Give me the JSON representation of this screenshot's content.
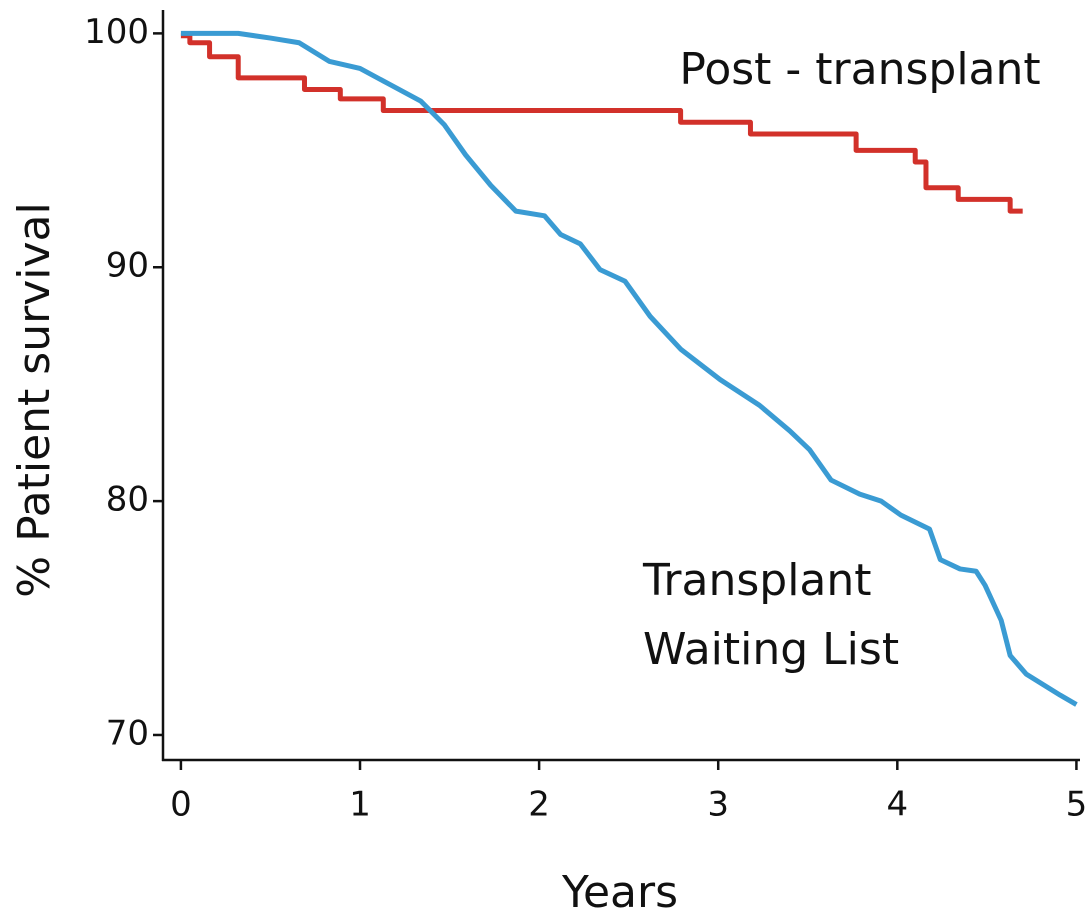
{
  "chart_data": {
    "type": "line",
    "x_label": "Years",
    "y_label": "% Patient survival",
    "xlim": [
      -0.1,
      5.02
    ],
    "ylim": [
      68.93,
      101
    ],
    "xticks": [
      0,
      1,
      2,
      3,
      4,
      5
    ],
    "yticks": [
      70,
      80,
      90,
      100
    ],
    "annotations": [
      "Post - transplant",
      "Transplant",
      "Waiting List"
    ],
    "series": [
      {
        "color": "#d2312a",
        "step": true,
        "x": [
          0,
          0.05,
          0.16,
          0.32,
          0.69,
          0.89,
          1.13,
          2.79,
          3.18,
          3.77,
          4.1,
          4.16,
          4.34,
          4.63,
          4.7
        ],
        "values": [
          99.9,
          99.6,
          99.0,
          98.1,
          97.6,
          97.2,
          96.7,
          96.2,
          95.7,
          95.0,
          94.5,
          93.4,
          92.9,
          92.4,
          92.4
        ]
      },
      {
        "color": "#3a9bd3",
        "step": false,
        "x": [
          0,
          0.32,
          0.5,
          0.66,
          0.83,
          1.0,
          1.17,
          1.34,
          1.47,
          1.59,
          1.73,
          1.87,
          2.03,
          2.12,
          2.23,
          2.34,
          2.48,
          2.62,
          2.79,
          3.01,
          3.23,
          3.4,
          3.51,
          3.63,
          3.79,
          3.91,
          4.02,
          4.18,
          4.24,
          4.35,
          4.44,
          4.49,
          4.58,
          4.63,
          4.72,
          4.91,
          5.0
        ],
        "values": [
          100,
          100,
          99.8,
          99.6,
          98.8,
          98.5,
          97.8,
          97.1,
          96.1,
          94.8,
          93.5,
          92.4,
          92.2,
          91.4,
          91.0,
          89.9,
          89.4,
          87.9,
          86.5,
          85.2,
          84.1,
          83.0,
          82.2,
          80.9,
          80.3,
          80.0,
          79.4,
          78.8,
          77.5,
          77.1,
          77.0,
          76.4,
          74.9,
          73.4,
          72.6,
          71.7,
          71.3
        ]
      }
    ]
  }
}
